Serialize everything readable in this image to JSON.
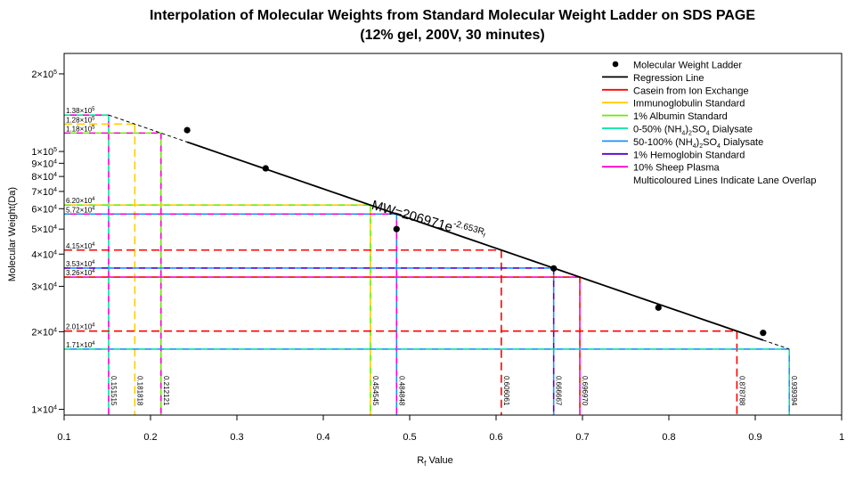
{
  "chart_data": {
    "type": "scatter",
    "title_line1": "Interpolation of Molecular Weights from Standard Molecular Weight Ladder on SDS PAGE",
    "title_line2": "(12% gel, 200V, 30 minutes)",
    "xlabel_main": "R",
    "xlabel_sub": "f",
    "xlabel_rest": " Value",
    "ylabel": "Molecular Weight(Da)",
    "x_scale": "linear",
    "y_scale": "log",
    "xlim": [
      0.1,
      1.0
    ],
    "ylim": [
      9500,
      240000
    ],
    "x_ticks": [
      {
        "value": 0.1,
        "label": "0.1"
      },
      {
        "value": 0.2,
        "label": "0.2"
      },
      {
        "value": 0.3,
        "label": "0.3"
      },
      {
        "value": 0.4,
        "label": "0.4"
      },
      {
        "value": 0.5,
        "label": "0.5"
      },
      {
        "value": 0.6,
        "label": "0.6"
      },
      {
        "value": 0.7,
        "label": "0.7"
      },
      {
        "value": 0.8,
        "label": "0.8"
      },
      {
        "value": 0.9,
        "label": "0.9"
      },
      {
        "value": 1.0,
        "label": "1"
      }
    ],
    "y_ticks": [
      {
        "value": 10000,
        "mant": "1",
        "exp": "4"
      },
      {
        "value": 20000,
        "mant": "2",
        "exp": "4"
      },
      {
        "value": 30000,
        "mant": "3",
        "exp": "4"
      },
      {
        "value": 40000,
        "mant": "4",
        "exp": "4"
      },
      {
        "value": 50000,
        "mant": "5",
        "exp": "4"
      },
      {
        "value": 60000,
        "mant": "6",
        "exp": "4"
      },
      {
        "value": 70000,
        "mant": "7",
        "exp": "4"
      },
      {
        "value": 80000,
        "mant": "8",
        "exp": "4"
      },
      {
        "value": 90000,
        "mant": "9",
        "exp": "4"
      },
      {
        "value": 100000,
        "mant": "1",
        "exp": "5"
      },
      {
        "value": 200000,
        "mant": "2",
        "exp": "5"
      }
    ],
    "ladder_points": [
      {
        "x": 0.2424,
        "y": 121000
      },
      {
        "x": 0.3333,
        "y": 86000
      },
      {
        "x": 0.4848,
        "y": 50000
      },
      {
        "x": 0.6667,
        "y": 35200
      },
      {
        "x": 0.7879,
        "y": 24800
      },
      {
        "x": 0.9091,
        "y": 19800
      }
    ],
    "regression": {
      "a": 206971,
      "b": -2.653,
      "solid_range": [
        0.2424,
        0.9091
      ],
      "dashed_range": [
        0.1515,
        0.9394
      ],
      "equation_base": "MW=206971e",
      "equation_exp": "-2.653R",
      "equation_exp_sub": "f"
    },
    "interpolations": [
      {
        "x": 0.151515,
        "x_label": "0.151515",
        "y_label_mant": "1.38",
        "y_label_exp": "5",
        "colors": [
          "#00e5a0",
          "#ff00cc"
        ]
      },
      {
        "x": 0.181818,
        "x_label": "0.181818",
        "y_label_mant": "1.28",
        "y_label_exp": "5",
        "colors": [
          "#ffcc00"
        ]
      },
      {
        "x": 0.212121,
        "x_label": "0.212121",
        "y_label_mant": "1.18",
        "y_label_exp": "5",
        "colors": [
          "#ff00cc",
          "#66ee00"
        ]
      },
      {
        "x": 0.454545,
        "x_label": "0.454545",
        "y_label_mant": "6.20",
        "y_label_exp": "4",
        "colors": [
          "#66ee00",
          "#ffcc00"
        ]
      },
      {
        "x": 0.484848,
        "x_label": "0.484848",
        "y_label_mant": "5.72",
        "y_label_exp": "4",
        "colors": [
          "#1e90ff",
          "#ff00cc"
        ]
      },
      {
        "x": 0.606061,
        "x_label": "0.606061",
        "y_label_mant": "4.15",
        "y_label_exp": "4",
        "colors": [
          "#ff0000"
        ]
      },
      {
        "x": 0.666667,
        "x_label": "0.666667",
        "y_label_mant": "3.53",
        "y_label_exp": "4",
        "colors": [
          "#5500cc",
          "#1e90ff"
        ]
      },
      {
        "x": 0.69697,
        "x_label": "0.696970",
        "y_label_mant": "3.26",
        "y_label_exp": "4",
        "colors": [
          "#ff0000",
          "#ff00cc"
        ]
      },
      {
        "x": 0.878788,
        "x_label": "0.878788",
        "y_label_mant": "2.01",
        "y_label_exp": "4",
        "colors": [
          "#ff0000"
        ]
      },
      {
        "x": 0.939394,
        "x_label": "0.939394",
        "y_label_mant": "1.71",
        "y_label_exp": "4",
        "colors": [
          "#00e5a0",
          "#1e90ff"
        ]
      }
    ],
    "legend": {
      "position": "top-right",
      "entries": [
        {
          "kind": "point",
          "color": "#000000",
          "label": "Molecular Weight Ladder"
        },
        {
          "kind": "line",
          "color": "#000000",
          "label": "Regression Line"
        },
        {
          "kind": "line",
          "color": "#ff0000",
          "label": "Casein from Ion Exchange"
        },
        {
          "kind": "line",
          "color": "#ffcc00",
          "label": "Immunoglobulin Standard"
        },
        {
          "kind": "line",
          "color": "#66ee00",
          "label": "1% Albumin Standard"
        },
        {
          "kind": "line",
          "color": "#00e5a0",
          "label": "0-50% (NH",
          "sub1": "4",
          "mid": ")",
          "sub2": "2",
          "tail": "SO",
          "sub3": "4",
          "end": " Dialysate"
        },
        {
          "kind": "line",
          "color": "#1e90ff",
          "label": "50-100% (NH",
          "sub1": "4",
          "mid": ")",
          "sub2": "2",
          "tail": "SO",
          "sub3": "4",
          "end": " Dialysate"
        },
        {
          "kind": "line",
          "color": "#5500cc",
          "label": "1% Hemoglobin Standard"
        },
        {
          "kind": "line",
          "color": "#ff00cc",
          "label": "10% Sheep Plasma"
        },
        {
          "kind": "none",
          "color": "",
          "label": "Multicoloured Lines Indicate Lane Overlap"
        }
      ]
    }
  }
}
